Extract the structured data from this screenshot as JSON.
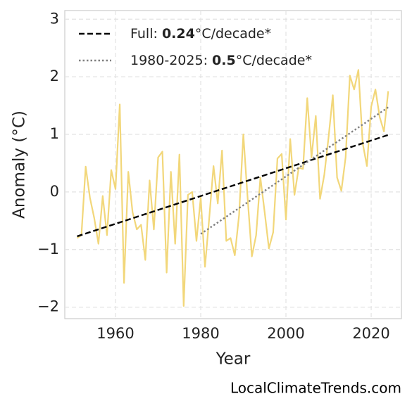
{
  "chart_data": {
    "type": "line",
    "xlabel": "Year",
    "ylabel": "Anomaly (°C)",
    "source": "LocalClimateTrends.com",
    "x": [
      1951,
      1952,
      1953,
      1954,
      1955,
      1956,
      1957,
      1958,
      1959,
      1960,
      1961,
      1962,
      1963,
      1964,
      1965,
      1966,
      1967,
      1968,
      1969,
      1970,
      1971,
      1972,
      1973,
      1974,
      1975,
      1976,
      1977,
      1978,
      1979,
      1980,
      1981,
      1982,
      1983,
      1984,
      1985,
      1986,
      1987,
      1988,
      1989,
      1990,
      1991,
      1992,
      1993,
      1994,
      1995,
      1996,
      1997,
      1998,
      1999,
      2000,
      2001,
      2002,
      2003,
      2004,
      2005,
      2006,
      2007,
      2008,
      2009,
      2010,
      2011,
      2012,
      2013,
      2014,
      2015,
      2016,
      2017,
      2018,
      2019,
      2020,
      2021,
      2022,
      2023,
      2024
    ],
    "series": [
      {
        "color": "#f2d77a",
        "values": [
          -0.8,
          -0.75,
          0.44,
          -0.1,
          -0.45,
          -0.9,
          -0.07,
          -0.75,
          0.38,
          0.05,
          1.52,
          -1.58,
          0.35,
          -0.35,
          -0.65,
          -0.57,
          -1.18,
          0.2,
          -0.65,
          0.6,
          0.7,
          -1.4,
          0.35,
          -0.9,
          0.65,
          -1.98,
          -0.05,
          0.0,
          -0.85,
          -0.1,
          -1.3,
          -0.45,
          0.45,
          -0.2,
          0.72,
          -0.85,
          -0.8,
          -1.1,
          -0.4,
          1.0,
          -0.1,
          -1.12,
          -0.75,
          0.25,
          -0.35,
          -0.98,
          -0.7,
          0.58,
          0.66,
          -0.48,
          0.92,
          -0.05,
          0.42,
          0.4,
          1.63,
          0.6,
          1.32,
          -0.12,
          0.3,
          0.95,
          1.68,
          0.25,
          0.02,
          0.6,
          2.02,
          1.78,
          2.12,
          0.85,
          0.45,
          1.48,
          1.78,
          1.3,
          1.05,
          1.75
        ]
      },
      {
        "name": [
          "Full: ",
          "0.24",
          "°C/decade*"
        ],
        "color": "#000000",
        "style": "dashed",
        "x": [
          1951,
          2024
        ],
        "values": [
          -0.77,
          0.99
        ]
      },
      {
        "name": [
          "1980-2025: ",
          "0.5",
          "°C/decade*"
        ],
        "color": "#808080",
        "style": "dotted",
        "x": [
          1980,
          2024
        ],
        "values": [
          -0.73,
          1.47
        ]
      }
    ],
    "xlim": [
      1948.1,
      2027.1
    ],
    "ylim": [
      -2.2,
      3.15
    ],
    "xticks": [
      1960,
      1980,
      2000,
      2020
    ],
    "yticks": [
      {
        "value": -2,
        "label": "−2"
      },
      {
        "value": -1,
        "label": "−1"
      },
      0,
      1,
      2,
      3
    ],
    "grid": true,
    "legend": "upper left"
  }
}
